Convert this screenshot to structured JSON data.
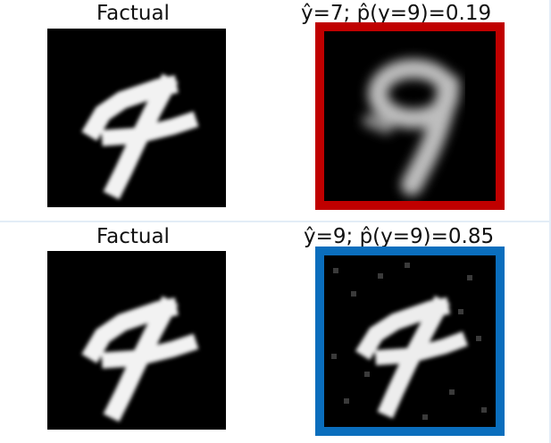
{
  "rows": [
    {
      "factual_title": "Factual",
      "counterfactual_title": "ŷ=7; p̂(y=9)=0.19",
      "frame_color": "#c00000"
    },
    {
      "factual_title": "Factual",
      "counterfactual_title": "ŷ=9; p̂(y=9)=0.85",
      "frame_color": "#0a6ebd"
    }
  ]
}
